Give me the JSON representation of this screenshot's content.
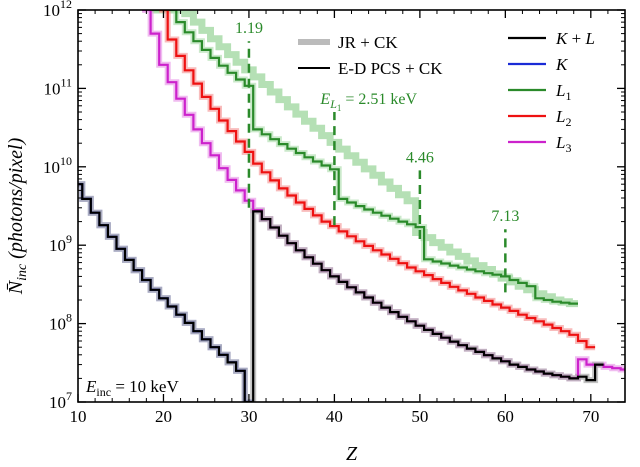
{
  "chart_data": {
    "type": "line",
    "xlabel": "Z",
    "ylabel_main": "N̄",
    "ylabel_sub": "inc",
    "ylabel_rest": " (photons/pixel)",
    "x_range": [
      10,
      74
    ],
    "y_range": [
      10000000.0,
      1000000000000.0
    ],
    "y_scale": "log",
    "x_ticks": [
      10,
      20,
      30,
      40,
      50,
      60,
      70
    ],
    "y_ticks": [
      {
        "value": 10000000.0,
        "exp": "7"
      },
      {
        "value": 100000000.0,
        "exp": "8"
      },
      {
        "value": 1000000000.0,
        "exp": "9"
      },
      {
        "value": 10000000000.0,
        "exp": "10"
      },
      {
        "value": 100000000000.0,
        "exp": "11"
      },
      {
        "value": 1000000000000.0,
        "exp": "12"
      }
    ],
    "corner_label": {
      "main": "E",
      "sub": "inc",
      "rest": " = 10 keV"
    },
    "legend": {
      "style_entries": [
        {
          "label": "JR + CK",
          "color": "#bbbbbb",
          "width": 6
        },
        {
          "label": "E-D PCS + CK",
          "color": "#000000",
          "width": 2
        }
      ],
      "series_entries": [
        {
          "label_main": "K",
          "label_sub": "",
          "label_rest": " + ",
          "label_main2": "L",
          "color": "#000000"
        },
        {
          "label_main": "K",
          "label_sub": "",
          "label_rest": "",
          "label_main2": "",
          "color": "#1a2bd6"
        },
        {
          "label_main": "L",
          "label_sub": "1",
          "label_rest": "",
          "label_main2": "",
          "color": "#2a8a2a"
        },
        {
          "label_main": "L",
          "label_sub": "2",
          "label_rest": "",
          "label_main2": "",
          "color": "#ee1111"
        },
        {
          "label_main": "L",
          "label_sub": "3",
          "label_rest": "",
          "label_main2": "",
          "color": "#cc22cc"
        }
      ]
    },
    "edge_annotations": [
      {
        "text": "1.19",
        "x": 30,
        "y_from": 3000000000.0,
        "y_to": 400000000000.0,
        "label_y": 400000000000.0
      },
      {
        "text": "",
        "x": 40,
        "y_from": 1800000000.0,
        "y_to": 50000000000.0,
        "label_y": 50000000000.0,
        "rich": {
          "main": "E",
          "sub": "L",
          "subsub": "1",
          "rest": " = 2.51 keV"
        }
      },
      {
        "text": "4.46",
        "x": 50,
        "y_from": 1200000000.0,
        "y_to": 9000000000.0,
        "label_y": 9000000000.0
      },
      {
        "text": "7.13",
        "x": 60,
        "y_from": 250000000.0,
        "y_to": 1600000000.0,
        "label_y": 1600000000.0
      }
    ],
    "series": [
      {
        "name": "K",
        "color": "#1a2bd6",
        "shade": "#8890f0",
        "x": [
          10,
          11,
          12,
          13,
          14,
          15,
          16,
          17,
          18,
          19,
          20,
          21,
          22,
          23,
          24,
          25,
          26,
          27,
          28,
          29,
          30
        ],
        "y": [
          6000000000.0,
          3900000000.0,
          2600000000.0,
          1800000000.0,
          1280000000.0,
          900000000.0,
          650000000.0,
          480000000.0,
          360000000.0,
          270000000.0,
          210000000.0,
          165000000.0,
          130000000.0,
          102000000.0,
          80000000.0,
          63000000.0,
          50000000.0,
          40000000.0,
          32000000.0,
          25000000.0,
          10000000.0
        ]
      },
      {
        "name": "L1",
        "color": "#2a8a2a",
        "shade": "#b5e0b5",
        "x": [
          19,
          20,
          21,
          22,
          23,
          24,
          25,
          26,
          27,
          28,
          29,
          30,
          31,
          32,
          33,
          34,
          35,
          36,
          37,
          38,
          39,
          40,
          41,
          42,
          43,
          44,
          45,
          46,
          47,
          48,
          49,
          50,
          51,
          52,
          53,
          54,
          55,
          56,
          57,
          58,
          59,
          60,
          61,
          62,
          63,
          64,
          65,
          66,
          67,
          68
        ],
        "y": [
          1000000000000.0,
          1000000000000.0,
          1000000000000.0,
          700000000000.0,
          520000000000.0,
          400000000000.0,
          310000000000.0,
          245000000000.0,
          195000000000.0,
          158000000000.0,
          130000000000.0,
          108000000000.0,
          30000000000.0,
          26000000000.0,
          22500000000.0,
          19500000000.0,
          17000000000.0,
          15000000000.0,
          13200000000.0,
          11700000000.0,
          10400000000.0,
          9300000000.0,
          3900000000.0,
          3500000000.0,
          3150000000.0,
          2850000000.0,
          2600000000.0,
          2380000000.0,
          2180000000.0,
          2000000000.0,
          1850000000.0,
          1700000000.0,
          660000000.0,
          620000000.0,
          585000000.0,
          550000000.0,
          520000000.0,
          490000000.0,
          465000000.0,
          440000000.0,
          420000000.0,
          400000000.0,
          360000000.0,
          330000000.0,
          300000000.0,
          210000000.0,
          200000000.0,
          190000000.0,
          185000000.0,
          180000000.0
        ]
      },
      {
        "name": "L1 (JR + CK)",
        "color": "#b5e0b5",
        "x": [
          19,
          20,
          21,
          22,
          23,
          24,
          25,
          26,
          27,
          28,
          29,
          30,
          31,
          32,
          33,
          34,
          35,
          36,
          37,
          38,
          39,
          40,
          41,
          42,
          43,
          44,
          45,
          46,
          47,
          48,
          49,
          50,
          51,
          52,
          53,
          54,
          55,
          56,
          57,
          58,
          59,
          60,
          61,
          62,
          63,
          64,
          65,
          66,
          67,
          68
        ],
        "y": [
          1000000000000.0,
          1000000000000.0,
          1000000000000.0,
          1000000000000.0,
          900000000000.0,
          700000000000.0,
          550000000000.0,
          430000000000.0,
          340000000000.0,
          270000000000.0,
          215000000000.0,
          172000000000.0,
          140000000000.0,
          112000000000.0,
          90000000000.0,
          72000000000.0,
          58000000000.0,
          47000000000.0,
          38000000000.0,
          31000000000.0,
          25000000000.0,
          20500000000.0,
          16800000000.0,
          13800000000.0,
          11400000000.0,
          9400000000.0,
          7800000000.0,
          6400000000.0,
          5300000000.0,
          4400000000.0,
          3700000000.0,
          1450000000.0,
          1250000000.0,
          1080000000.0,
          940000000.0,
          820000000.0,
          720000000.0,
          630000000.0,
          550000000.0,
          490000000.0,
          430000000.0,
          380000000.0,
          340000000.0,
          300000000.0,
          270000000.0,
          240000000.0,
          220000000.0,
          200000000.0,
          190000000.0,
          180000000.0
        ]
      },
      {
        "name": "L2",
        "color": "#ee1111",
        "shade": "#f5a0a0",
        "x": [
          20,
          21,
          22,
          23,
          24,
          25,
          26,
          27,
          28,
          29,
          30,
          31,
          32,
          33,
          34,
          35,
          36,
          37,
          38,
          39,
          40,
          41,
          42,
          43,
          44,
          45,
          46,
          47,
          48,
          49,
          50,
          51,
          52,
          53,
          54,
          55,
          56,
          57,
          58,
          59,
          60,
          61,
          62,
          63,
          64,
          65,
          66,
          67,
          68,
          69,
          70
        ],
        "y": [
          1000000000000.0,
          420000000000.0,
          260000000000.0,
          170000000000.0,
          115000000000.0,
          78000000000.0,
          55000000000.0,
          39000000000.0,
          28500000000.0,
          21000000000.0,
          15500000000.0,
          11000000000.0,
          8500000000.0,
          6700000000.0,
          5300000000.0,
          4300000000.0,
          3500000000.0,
          2900000000.0,
          2400000000.0,
          2000000000.0,
          1750000000.0,
          1500000000.0,
          1300000000.0,
          1120000000.0,
          980000000.0,
          860000000.0,
          760000000.0,
          670000000.0,
          590000000.0,
          520000000.0,
          465000000.0,
          415000000.0,
          370000000.0,
          330000000.0,
          295000000.0,
          265000000.0,
          240000000.0,
          215000000.0,
          195000000.0,
          175000000.0,
          160000000.0,
          145000000.0,
          130000000.0,
          118000000.0,
          107000000.0,
          97000000.0,
          88000000.0,
          80000000.0,
          72000000.0,
          60000000.0,
          50000000.0
        ]
      },
      {
        "name": "L3",
        "color": "#cc22cc",
        "shade": "#eaa0ea",
        "x": [
          18,
          19,
          20,
          21,
          22,
          23,
          24,
          25,
          26,
          27,
          28,
          29,
          30,
          31,
          32,
          33,
          34,
          35,
          36,
          37,
          38,
          39,
          40,
          41,
          42,
          43,
          44,
          45,
          46,
          47,
          48,
          49,
          50,
          51,
          52,
          53,
          54,
          55,
          56,
          57,
          58,
          59,
          60,
          61,
          62,
          63,
          64,
          65,
          66,
          67,
          68,
          69,
          70,
          71,
          72,
          73,
          74
        ],
        "y": [
          1000000000000.0,
          500000000000.0,
          200000000000.0,
          120000000000.0,
          74000000000.0,
          46000000000.0,
          30000000000.0,
          20000000000.0,
          14000000000.0,
          9600000000.0,
          6800000000.0,
          5000000000.0,
          3700000000.0,
          2800000000.0,
          2150000000.0,
          1680000000.0,
          1320000000.0,
          1060000000.0,
          860000000.0,
          700000000.0,
          580000000.0,
          480000000.0,
          400000000.0,
          340000000.0,
          290000000.0,
          250000000.0,
          215000000.0,
          185000000.0,
          160000000.0,
          140000000.0,
          122000000.0,
          107000000.0,
          94000000.0,
          83000000.0,
          74000000.0,
          66000000.0,
          59000000.0,
          53000000.0,
          48000000.0,
          43500000.0,
          39500000.0,
          36000000.0,
          33000000.0,
          30000000.0,
          28000000.0,
          26000000.0,
          24500000.0,
          23000000.0,
          22000000.0,
          21000000.0,
          20000000.0,
          35000000.0,
          30000000.0,
          30000000.0,
          28000000.0,
          27000000.0,
          26000000.0
        ]
      },
      {
        "name": "K + L",
        "color": "#000000",
        "shade": "#aaaaaa",
        "x": [
          10,
          11,
          12,
          13,
          14,
          15,
          16,
          17,
          18,
          19,
          20,
          21,
          22,
          23,
          24,
          25,
          26,
          27,
          28,
          29,
          30,
          31,
          32,
          33,
          34,
          35,
          36,
          37,
          38,
          39,
          40,
          41,
          42,
          43,
          44,
          45,
          46,
          47,
          48,
          49,
          50,
          51,
          52,
          53,
          54,
          55,
          56,
          57,
          58,
          59,
          60,
          61,
          62,
          63,
          64,
          65,
          66,
          67,
          68,
          69,
          70,
          71
        ],
        "y": [
          6000000000.0,
          3900000000.0,
          2600000000.0,
          1800000000.0,
          1280000000.0,
          900000000.0,
          650000000.0,
          480000000.0,
          360000000.0,
          270000000.0,
          210000000.0,
          165000000.0,
          130000000.0,
          102000000.0,
          80000000.0,
          63000000.0,
          50000000.0,
          40000000.0,
          32000000.0,
          25000000.0,
          10000000.0,
          2700000000.0,
          2150000000.0,
          1680000000.0,
          1320000000.0,
          1060000000.0,
          860000000.0,
          700000000.0,
          580000000.0,
          480000000.0,
          400000000.0,
          340000000.0,
          290000000.0,
          250000000.0,
          215000000.0,
          185000000.0,
          160000000.0,
          140000000.0,
          122000000.0,
          107000000.0,
          94000000.0,
          83000000.0,
          74000000.0,
          66000000.0,
          59000000.0,
          53000000.0,
          48000000.0,
          43500000.0,
          39500000.0,
          36000000.0,
          33000000.0,
          30000000.0,
          28000000.0,
          26000000.0,
          24500000.0,
          23000000.0,
          22000000.0,
          21000000.0,
          20000000.0,
          21000000.0,
          19000000.0,
          30000000.0
        ]
      }
    ]
  }
}
